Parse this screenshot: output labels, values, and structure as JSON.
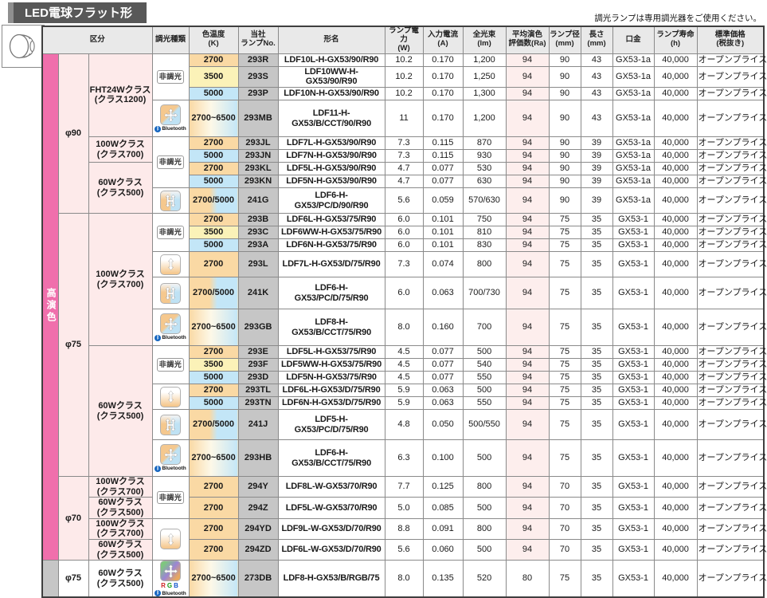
{
  "title": "LED電球フラット形",
  "note": "調光ランプは専用調光器をご使用ください。",
  "dim_labels": {
    "non": "非調光",
    "bluetooth": "Bluetooth",
    "rgb": "R G B"
  },
  "header": [
    {
      "label": "区分",
      "colspan": 3
    },
    {
      "label": "調光種類"
    },
    {
      "label": "色温度",
      "sub": "(K)"
    },
    {
      "label": "当社",
      "sub": "ランプNo."
    },
    {
      "label": "形名"
    },
    {
      "label": "ランプ電力",
      "sub": "(W)"
    },
    {
      "label": "入力電流",
      "sub": "(A)"
    },
    {
      "label": "全光束",
      "sub": "(lm)"
    },
    {
      "label": "平均演色",
      "sub": "評価数(Ra)"
    },
    {
      "label": "ランプ径",
      "sub": "(mm)"
    },
    {
      "label": "長さ",
      "sub": "(mm)"
    },
    {
      "label": "口金"
    },
    {
      "label": "ランプ寿命",
      "sub": "(h)"
    },
    {
      "label": "標準価格",
      "sub": "(税抜き)"
    }
  ],
  "rows": [
    {
      "h": 16,
      "pink": true,
      "sidebar": {
        "text": "高演色",
        "span": 26,
        "style": "pink"
      },
      "phi": {
        "text": "φ90",
        "span": 9
      },
      "cls": {
        "l1": "FHT24Wクラス",
        "l2": "(クラス1200)",
        "span": 4
      },
      "dim": {
        "type": "non",
        "span": 3
      },
      "temp": {
        "t": "2700",
        "bg": "warm"
      },
      "no": "293R",
      "model": "LDF10L-H-GX53/90/R90",
      "vals": [
        "10.2",
        "0.170",
        "1,200",
        "94",
        "90",
        "43",
        "GX53-1a",
        "40,000",
        "オープンプライス"
      ]
    },
    {
      "h": 16,
      "pink": true,
      "temp": {
        "t": "3500",
        "bg": "neutral"
      },
      "no": "293S",
      "model": "LDF10WW-H-GX53/90/R90",
      "vals": [
        "10.2",
        "0.170",
        "1,250",
        "94",
        "90",
        "43",
        "GX53-1a",
        "40,000",
        "オープンプライス"
      ]
    },
    {
      "h": 16,
      "pink": true,
      "temp": {
        "t": "5000",
        "bg": "cool"
      },
      "no": "293P",
      "model": "LDF10N-H-GX53/90/R90",
      "vals": [
        "10.2",
        "0.170",
        "1,300",
        "94",
        "90",
        "43",
        "GX53-1a",
        "40,000",
        "オープンプライス"
      ]
    },
    {
      "h": 46,
      "pink": true,
      "dim": {
        "type": "bt",
        "span": 1
      },
      "temp": {
        "t": "2700~6500",
        "bg": "range"
      },
      "no": "293MB",
      "model": "LDF11-H-GX53/B/CCT/90/R90",
      "vals": [
        "11",
        "0.170",
        "1,200",
        "94",
        "90",
        "43",
        "GX53-1a",
        "40,000",
        "オープンプライス"
      ]
    },
    {
      "h": 16,
      "pink": true,
      "cls": {
        "l1": "100Wクラス",
        "l2": "(クラス700)",
        "span": 2
      },
      "dim": {
        "type": "non",
        "span": 4
      },
      "temp": {
        "t": "2700",
        "bg": "warm"
      },
      "no": "293JL",
      "model": "LDF7L-H-GX53/90/R90",
      "vals": [
        "7.3",
        "0.115",
        "870",
        "94",
        "90",
        "39",
        "GX53-1a",
        "40,000",
        "オープンプライス"
      ]
    },
    {
      "h": 16,
      "pink": true,
      "temp": {
        "t": "5000",
        "bg": "cool"
      },
      "no": "293JN",
      "model": "LDF7N-H-GX53/90/R90",
      "vals": [
        "7.3",
        "0.115",
        "930",
        "94",
        "90",
        "39",
        "GX53-1a",
        "40,000",
        "オープンプライス"
      ]
    },
    {
      "h": 16,
      "pink": true,
      "cls": {
        "l1": "60Wクラス",
        "l2": "(クラス500)",
        "span": 3
      },
      "temp": {
        "t": "2700",
        "bg": "warm"
      },
      "no": "293KL",
      "model": "LDF5L-H-GX53/90/R90",
      "vals": [
        "4.7",
        "0.077",
        "530",
        "94",
        "90",
        "39",
        "GX53-1a",
        "40,000",
        "オープンプライス"
      ]
    },
    {
      "h": 16,
      "pink": true,
      "temp": {
        "t": "5000",
        "bg": "cool"
      },
      "no": "293KN",
      "model": "LDF5N-H-GX53/90/R90",
      "vals": [
        "4.7",
        "0.077",
        "630",
        "94",
        "90",
        "39",
        "GX53-1a",
        "40,000",
        "オープンプライス"
      ]
    },
    {
      "h": 32,
      "pink": true,
      "dim": {
        "type": "color",
        "span": 1
      },
      "temp": {
        "t": "2700/5000",
        "bg": "duo"
      },
      "no": "241G",
      "model": "LDF6-H-GX53/PC/D/90/R90",
      "vals": [
        "5.6",
        "0.059",
        "570/630",
        "94",
        "90",
        "39",
        "GX53-1a",
        "40,000",
        "オープンプライス"
      ]
    },
    {
      "h": 16,
      "pink": true,
      "phi": {
        "text": "φ75",
        "span": 13
      },
      "cls": {
        "l1": "100Wクラス",
        "l2": "(クラス700)",
        "span": 6
      },
      "dim": {
        "type": "non",
        "span": 3
      },
      "temp": {
        "t": "2700",
        "bg": "warm"
      },
      "no": "293B",
      "model": "LDF6L-H-GX53/75/R90",
      "vals": [
        "6.0",
        "0.101",
        "750",
        "94",
        "75",
        "35",
        "GX53-1",
        "40,000",
        "オープンプライス"
      ]
    },
    {
      "h": 16,
      "pink": true,
      "temp": {
        "t": "3500",
        "bg": "neutral"
      },
      "no": "293C",
      "model": "LDF6WW-H-GX53/75/R90",
      "vals": [
        "6.0",
        "0.101",
        "810",
        "94",
        "75",
        "35",
        "GX53-1",
        "40,000",
        "オープンプライス"
      ]
    },
    {
      "h": 16,
      "pink": true,
      "temp": {
        "t": "5000",
        "bg": "cool"
      },
      "no": "293A",
      "model": "LDF6N-H-GX53/75/R90",
      "vals": [
        "6.0",
        "0.101",
        "830",
        "94",
        "75",
        "35",
        "GX53-1",
        "40,000",
        "オープンプライス"
      ]
    },
    {
      "h": 32,
      "pink": true,
      "dim": {
        "type": "dimmer",
        "span": 1
      },
      "temp": {
        "t": "2700",
        "bg": "warm"
      },
      "no": "293L",
      "model": "LDF7L-H-GX53/D/75/R90",
      "vals": [
        "7.3",
        "0.074",
        "800",
        "94",
        "75",
        "35",
        "GX53-1",
        "40,000",
        "オープンプライス"
      ]
    },
    {
      "h": 40,
      "pink": true,
      "dim": {
        "type": "color",
        "span": 1
      },
      "temp": {
        "t": "2700/5000",
        "bg": "duo"
      },
      "no": "241K",
      "model": "LDF6-H-GX53/PC/D/75/R90",
      "vals": [
        "6.0",
        "0.063",
        "700/730",
        "94",
        "75",
        "35",
        "GX53-1",
        "40,000",
        "オープンプライス"
      ]
    },
    {
      "h": 46,
      "pink": true,
      "dim": {
        "type": "bt",
        "span": 1
      },
      "temp": {
        "t": "2700~6500",
        "bg": "range"
      },
      "no": "293GB",
      "model": "LDF8-H-GX53/B/CCT/75/R90",
      "vals": [
        "8.0",
        "0.160",
        "700",
        "94",
        "75",
        "35",
        "GX53-1",
        "40,000",
        "オープンプライス"
      ]
    },
    {
      "h": 16,
      "pink": true,
      "cls": {
        "l1": "60Wクラス",
        "l2": "(クラス500)",
        "span": 7
      },
      "dim": {
        "type": "non",
        "span": 3
      },
      "temp": {
        "t": "2700",
        "bg": "warm"
      },
      "no": "293E",
      "model": "LDF5L-H-GX53/75/R90",
      "vals": [
        "4.5",
        "0.077",
        "500",
        "94",
        "75",
        "35",
        "GX53-1",
        "40,000",
        "オープンプライス"
      ]
    },
    {
      "h": 16,
      "pink": true,
      "temp": {
        "t": "3500",
        "bg": "neutral"
      },
      "no": "293F",
      "model": "LDF5WW-H-GX53/75/R90",
      "vals": [
        "4.5",
        "0.077",
        "540",
        "94",
        "75",
        "35",
        "GX53-1",
        "40,000",
        "オープンプライス"
      ]
    },
    {
      "h": 16,
      "pink": true,
      "temp": {
        "t": "5000",
        "bg": "cool"
      },
      "no": "293D",
      "model": "LDF5N-H-GX53/75/R90",
      "vals": [
        "4.5",
        "0.077",
        "550",
        "94",
        "75",
        "35",
        "GX53-1",
        "40,000",
        "オープンプライス"
      ]
    },
    {
      "h": 16,
      "pink": true,
      "dim": {
        "type": "dimmer",
        "span": 2
      },
      "temp": {
        "t": "2700",
        "bg": "warm"
      },
      "no": "293TL",
      "model": "LDF6L-H-GX53/D/75/R90",
      "vals": [
        "5.9",
        "0.063",
        "500",
        "94",
        "75",
        "35",
        "GX53-1",
        "40,000",
        "オープンプライス"
      ]
    },
    {
      "h": 16,
      "pink": true,
      "temp": {
        "t": "5000",
        "bg": "cool"
      },
      "no": "293TN",
      "model": "LDF6N-H-GX53/D/75/R90",
      "vals": [
        "5.9",
        "0.063",
        "550",
        "94",
        "75",
        "35",
        "GX53-1",
        "40,000",
        "オープンプライス"
      ]
    },
    {
      "h": 38,
      "pink": true,
      "dim": {
        "type": "color",
        "span": 1
      },
      "temp": {
        "t": "2700/5000",
        "bg": "duo"
      },
      "no": "241J",
      "model": "LDF5-H-GX53/PC/D/75/R90",
      "vals": [
        "4.8",
        "0.050",
        "500/550",
        "94",
        "75",
        "35",
        "GX53-1",
        "40,000",
        "オープンプライス"
      ]
    },
    {
      "h": 46,
      "pink": true,
      "dim": {
        "type": "bt",
        "span": 1
      },
      "temp": {
        "t": "2700~6500",
        "bg": "range"
      },
      "no": "293HB",
      "model": "LDF6-H-GX53/B/CCT/75/R90",
      "vals": [
        "6.3",
        "0.100",
        "500",
        "94",
        "75",
        "35",
        "GX53-1",
        "40,000",
        "オープンプライス"
      ]
    },
    {
      "h": 25,
      "pink": true,
      "phi": {
        "text": "φ70",
        "span": 4
      },
      "cls": {
        "l1": "100Wクラス",
        "l2": "(クラス700)",
        "span": 1
      },
      "dim": {
        "type": "non",
        "span": 2
      },
      "temp": {
        "t": "2700",
        "bg": "warm"
      },
      "no": "294Y",
      "model": "LDF8L-W-GX53/70/R90",
      "vals": [
        "7.7",
        "0.125",
        "800",
        "94",
        "70",
        "35",
        "GX53-1",
        "40,000",
        "オープンプライス"
      ]
    },
    {
      "h": 25,
      "pink": true,
      "cls": {
        "l1": "60Wクラス",
        "l2": "(クラス500)",
        "span": 1
      },
      "temp": {
        "t": "2700",
        "bg": "warm"
      },
      "no": "294Z",
      "model": "LDF5L-W-GX53/70/R90",
      "vals": [
        "5.0",
        "0.085",
        "500",
        "94",
        "70",
        "35",
        "GX53-1",
        "40,000",
        "オープンプライス"
      ]
    },
    {
      "h": 25,
      "pink": true,
      "cls": {
        "l1": "100Wクラス",
        "l2": "(クラス700)",
        "span": 1
      },
      "dim": {
        "type": "dimmer",
        "span": 2
      },
      "temp": {
        "t": "2700",
        "bg": "warm"
      },
      "no": "294YD",
      "model": "LDF9L-W-GX53/D/70/R90",
      "vals": [
        "8.8",
        "0.091",
        "800",
        "94",
        "70",
        "35",
        "GX53-1",
        "40,000",
        "オープンプライス"
      ]
    },
    {
      "h": 25,
      "pink": true,
      "cls": {
        "l1": "60Wクラス",
        "l2": "(クラス500)",
        "span": 1
      },
      "temp": {
        "t": "2700",
        "bg": "warm"
      },
      "no": "294ZD",
      "model": "LDF6L-W-GX53/D/70/R90",
      "vals": [
        "5.6",
        "0.060",
        "500",
        "94",
        "70",
        "35",
        "GX53-1",
        "40,000",
        "オープンプライス"
      ]
    },
    {
      "h": 46,
      "pink": false,
      "ra_white": true,
      "sidebar": {
        "text": "",
        "span": 1,
        "style": "gray"
      },
      "phi": {
        "text": "φ75",
        "span": 1
      },
      "cls": {
        "l1": "60Wクラス",
        "l2": "(クラス500)",
        "span": 1
      },
      "dim": {
        "type": "rgb",
        "span": 1
      },
      "temp": {
        "t": "2700~6500",
        "bg": "range"
      },
      "no": "273DB",
      "model": "LDF8-H-GX53/B/RGB/75",
      "vals": [
        "8.0",
        "0.135",
        "520",
        "80",
        "75",
        "35",
        "GX53-1",
        "40,000",
        "オープンプライス"
      ]
    }
  ]
}
